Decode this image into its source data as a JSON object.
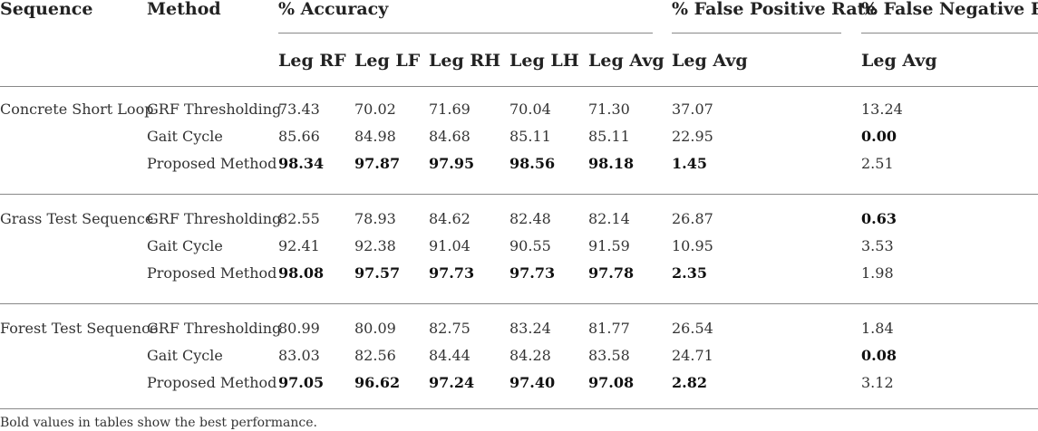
{
  "table": {
    "headers": {
      "sequence": "Sequence",
      "method": "Method",
      "accuracy": "% Accuracy",
      "fpr": "% False Positive Rate",
      "fnr": "% False Negative Rate"
    },
    "subheaders": [
      "Leg RF",
      "Leg LF",
      "Leg RH",
      "Leg LH",
      "Leg Avg",
      "Leg Avg",
      "Leg Avg"
    ],
    "groups": [
      {
        "sequence": "Concrete Short Loop",
        "rows": [
          {
            "method": "GRF Thresholding",
            "values": [
              "73.43",
              "70.02",
              "71.69",
              "70.04",
              "71.30",
              "37.07",
              "13.24"
            ],
            "bold": [
              false,
              false,
              false,
              false,
              false,
              false,
              false
            ]
          },
          {
            "method": "Gait Cycle",
            "values": [
              "85.66",
              "84.98",
              "84.68",
              "85.11",
              "85.11",
              "22.95",
              "0.00"
            ],
            "bold": [
              false,
              false,
              false,
              false,
              false,
              false,
              true
            ]
          },
          {
            "method": "Proposed Method",
            "values": [
              "98.34",
              "97.87",
              "97.95",
              "98.56",
              "98.18",
              "1.45",
              "2.51"
            ],
            "bold": [
              true,
              true,
              true,
              true,
              true,
              true,
              false
            ]
          }
        ]
      },
      {
        "sequence": "Grass Test Sequence",
        "rows": [
          {
            "method": "GRF Thresholding",
            "values": [
              "82.55",
              "78.93",
              "84.62",
              "82.48",
              "82.14",
              "26.87",
              "0.63"
            ],
            "bold": [
              false,
              false,
              false,
              false,
              false,
              false,
              true
            ]
          },
          {
            "method": "Gait Cycle",
            "values": [
              "92.41",
              "92.38",
              "91.04",
              "90.55",
              "91.59",
              "10.95",
              "3.53"
            ],
            "bold": [
              false,
              false,
              false,
              false,
              false,
              false,
              false
            ]
          },
          {
            "method": "Proposed Method",
            "values": [
              "98.08",
              "97.57",
              "97.73",
              "97.73",
              "97.78",
              "2.35",
              "1.98"
            ],
            "bold": [
              true,
              true,
              true,
              true,
              true,
              true,
              false
            ]
          }
        ]
      },
      {
        "sequence": "Forest Test Sequence",
        "rows": [
          {
            "method": "GRF Thresholding",
            "values": [
              "80.99",
              "80.09",
              "82.75",
              "83.24",
              "81.77",
              "26.54",
              "1.84"
            ],
            "bold": [
              false,
              false,
              false,
              false,
              false,
              false,
              false
            ]
          },
          {
            "method": "Gait Cycle",
            "values": [
              "83.03",
              "82.56",
              "84.44",
              "84.28",
              "83.58",
              "24.71",
              "0.08"
            ],
            "bold": [
              false,
              false,
              false,
              false,
              false,
              false,
              true
            ]
          },
          {
            "method": "Proposed Method",
            "values": [
              "97.05",
              "96.62",
              "97.24",
              "97.40",
              "97.08",
              "2.82",
              "3.12"
            ],
            "bold": [
              true,
              true,
              true,
              true,
              true,
              true,
              false
            ]
          }
        ]
      }
    ],
    "footnote": "Bold values in tables show the best performance."
  }
}
